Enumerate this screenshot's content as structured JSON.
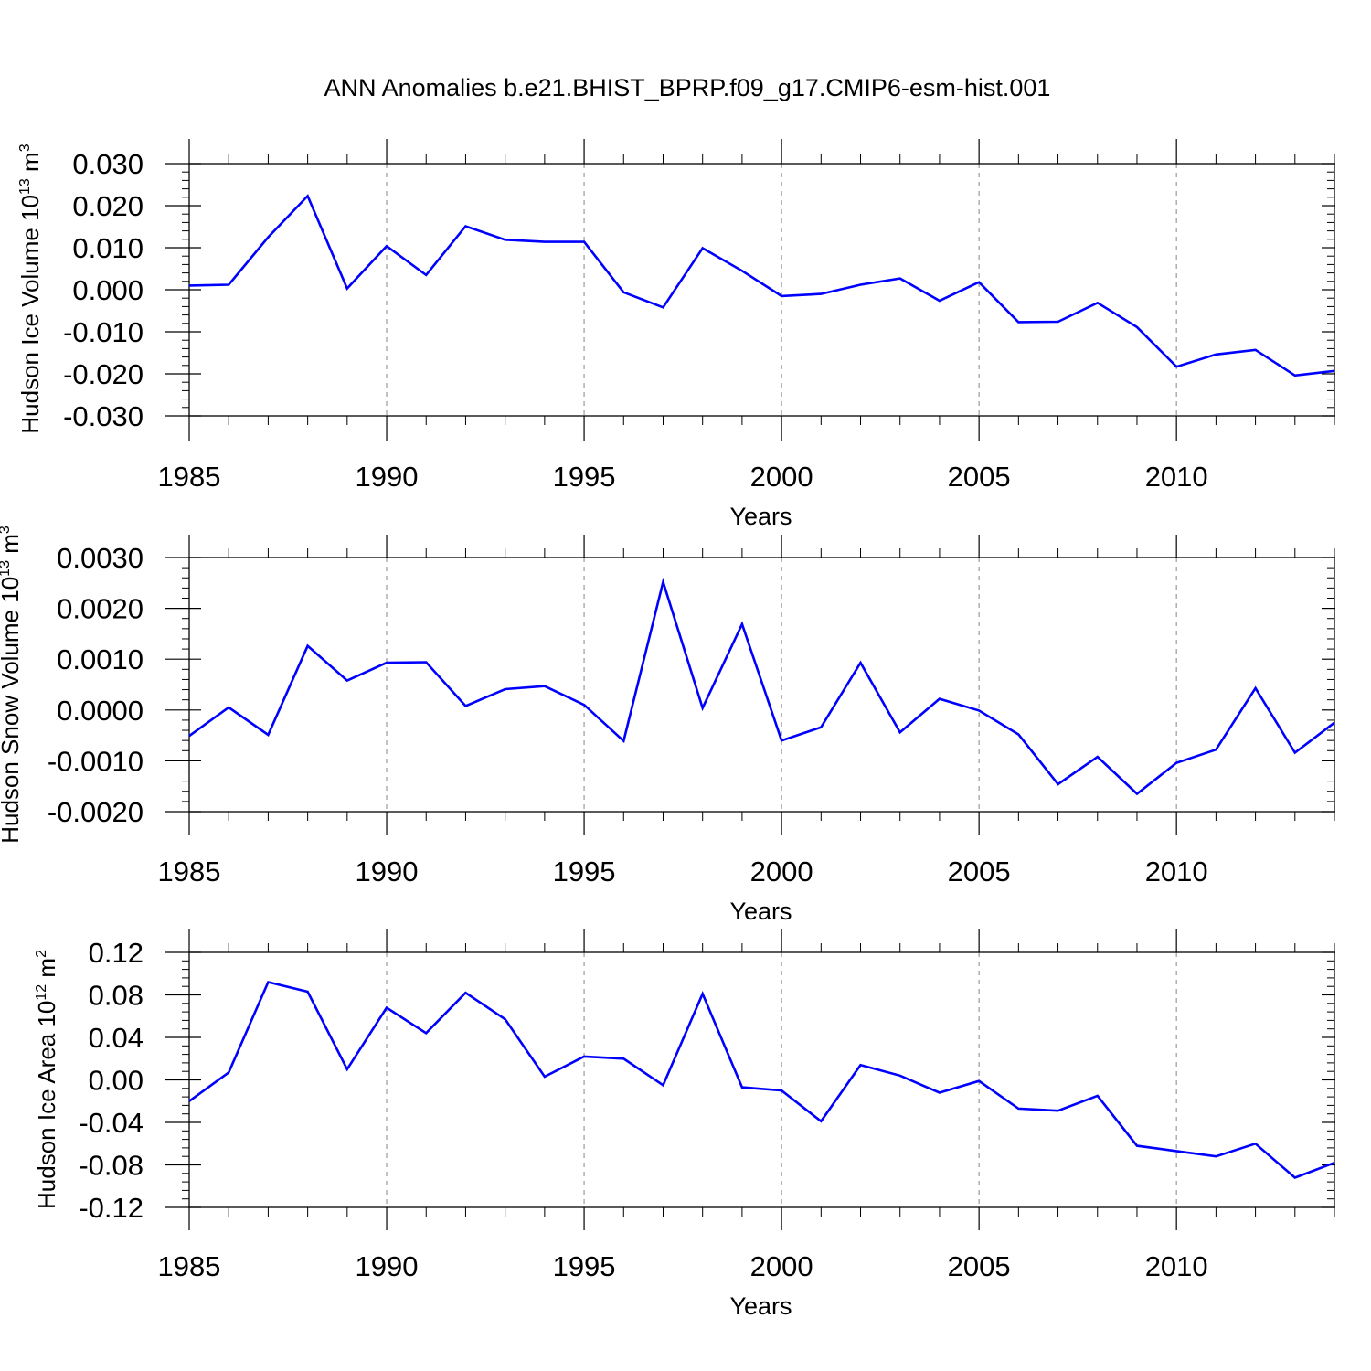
{
  "title": "ANN Anomalies b.e21.BHIST_BPRP.f09_g17.CMIP6-esm-hist.001",
  "colors": {
    "line": "#0000ff",
    "axis": "#000000",
    "grid": "#9a9a9a",
    "background": "#ffffff"
  },
  "chart_data": [
    {
      "type": "line",
      "ylabel_main": "Hudson Ice Volume 10",
      "ylabel_sup1": "13",
      "ylabel_mid": " m",
      "ylabel_sup2": "3",
      "xlabel": "Years",
      "xlim": [
        1985,
        2014
      ],
      "ylim": [
        -0.03,
        0.03
      ],
      "grid": "vertical dashed at major x ticks",
      "x_ticks": [
        1985,
        1990,
        1995,
        2000,
        2005,
        2010
      ],
      "x_tick_labels": [
        "1985",
        "1990",
        "1995",
        "2000",
        "2005",
        "2010"
      ],
      "y_ticks": [
        0.03,
        0.02,
        0.01,
        0.0,
        -0.01,
        -0.02,
        -0.03
      ],
      "y_tick_labels": [
        "0.030",
        "0.020",
        "0.010",
        "0.000",
        "-0.010",
        "-0.020",
        "-0.030"
      ],
      "x": [
        1985,
        1986,
        1987,
        1988,
        1989,
        1990,
        1991,
        1992,
        1993,
        1994,
        1995,
        1996,
        1997,
        1998,
        1999,
        2000,
        2001,
        2002,
        2003,
        2004,
        2005,
        2006,
        2007,
        2008,
        2009,
        2010,
        2011,
        2012,
        2013,
        2014
      ],
      "series": [
        {
          "values": [
            0.001,
            0.0012,
            0.0125,
            0.0223,
            0.0003,
            0.0104,
            0.0035,
            0.0151,
            0.0119,
            0.0114,
            0.0114,
            -0.0006,
            -0.0042,
            0.0099,
            0.0045,
            -0.0015,
            -0.001,
            0.0012,
            0.0027,
            -0.0026,
            0.0018,
            -0.0077,
            -0.0076,
            -0.0031,
            -0.0089,
            -0.0183,
            -0.0154,
            -0.0143,
            -0.0204,
            -0.0193
          ]
        }
      ]
    },
    {
      "type": "line",
      "ylabel_main": "Hudson Snow Volume 10",
      "ylabel_sup1": "13",
      "ylabel_mid": " m",
      "ylabel_sup2": "3",
      "xlabel": "Years",
      "xlim": [
        1985,
        2014
      ],
      "ylim": [
        -0.002,
        0.003
      ],
      "grid": "vertical dashed at major x ticks",
      "x_ticks": [
        1985,
        1990,
        1995,
        2000,
        2005,
        2010
      ],
      "x_tick_labels": [
        "1985",
        "1990",
        "1995",
        "2000",
        "2005",
        "2010"
      ],
      "y_ticks": [
        0.003,
        0.002,
        0.001,
        0.0,
        -0.001,
        -0.002
      ],
      "y_tick_labels": [
        "0.0030",
        "0.0020",
        "0.0010",
        "0.0000",
        "-0.0010",
        "-0.0020"
      ],
      "x": [
        1985,
        1986,
        1987,
        1988,
        1989,
        1990,
        1991,
        1992,
        1993,
        1994,
        1995,
        1996,
        1997,
        1998,
        1999,
        2000,
        2001,
        2002,
        2003,
        2004,
        2005,
        2006,
        2007,
        2008,
        2009,
        2010,
        2011,
        2012,
        2013,
        2014
      ],
      "series": [
        {
          "values": [
            -0.00051,
            5e-05,
            -0.00049,
            0.00126,
            0.00058,
            0.00093,
            0.00094,
            8e-05,
            0.00041,
            0.00047,
            0.0001,
            -0.00061,
            0.00252,
            4e-05,
            0.00169,
            -0.0006,
            -0.00034,
            0.00093,
            -0.00044,
            0.00022,
            -1e-05,
            -0.00048,
            -0.00146,
            -0.00092,
            -0.00165,
            -0.00104,
            -0.00078,
            0.00043,
            -0.00084,
            -0.00025
          ]
        }
      ]
    },
    {
      "type": "line",
      "ylabel_main": "Hudson Ice Area 10",
      "ylabel_sup1": "12",
      "ylabel_mid": " m",
      "ylabel_sup2": "2",
      "xlabel": "Years",
      "xlim": [
        1985,
        2014
      ],
      "ylim": [
        -0.12,
        0.12
      ],
      "grid": "vertical dashed at major x ticks",
      "x_ticks": [
        1985,
        1990,
        1995,
        2000,
        2005,
        2010
      ],
      "x_tick_labels": [
        "1985",
        "1990",
        "1995",
        "2000",
        "2005",
        "2010"
      ],
      "y_ticks": [
        0.12,
        0.08,
        0.04,
        0.0,
        -0.04,
        -0.08,
        -0.12
      ],
      "y_tick_labels": [
        "0.12",
        "0.08",
        "0.04",
        "0.00",
        "-0.04",
        "-0.08",
        "-0.12"
      ],
      "x": [
        1985,
        1986,
        1987,
        1988,
        1989,
        1990,
        1991,
        1992,
        1993,
        1994,
        1995,
        1996,
        1997,
        1998,
        1999,
        2000,
        2001,
        2002,
        2003,
        2004,
        2005,
        2006,
        2007,
        2008,
        2009,
        2010,
        2011,
        2012,
        2013,
        2014
      ],
      "series": [
        {
          "values": [
            -0.02,
            0.007,
            0.092,
            0.083,
            0.01,
            0.068,
            0.044,
            0.082,
            0.057,
            0.003,
            0.022,
            0.02,
            -0.005,
            0.081,
            -0.007,
            -0.01,
            -0.039,
            0.014,
            0.004,
            -0.012,
            -0.001,
            -0.027,
            -0.029,
            -0.015,
            -0.062,
            -0.067,
            -0.072,
            -0.06,
            -0.092,
            -0.078
          ]
        }
      ]
    }
  ]
}
